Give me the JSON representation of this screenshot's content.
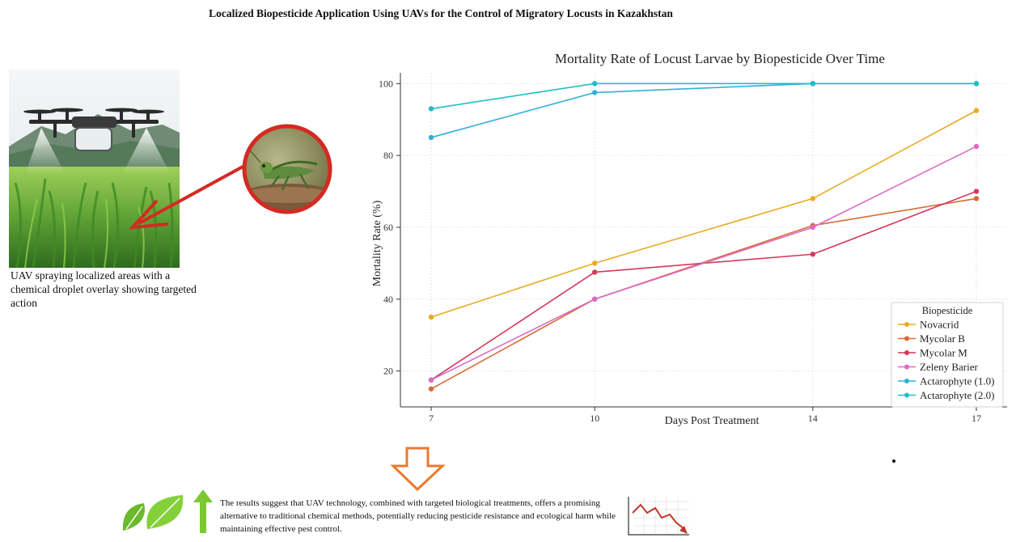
{
  "page": {
    "title": "Localized Biopesticide Application Using UAVs for the Control of Migratory Locusts in Kazakhstan",
    "photo_caption": "UAV spraying localized areas with a chemical droplet overlay showing targeted action",
    "conclusion": "The results suggest that UAV technology, combined with targeted biological treatments, offers a promising alternative to traditional chemical methods, potentially reducing pesticide resistance and ecological harm while maintaining effective pest control."
  },
  "icons": {
    "drone_photo": "drone-field-photo",
    "pointer_arrow": "red-arrow-icon",
    "locust_photo": "locust-icon",
    "down_arrow": "down-arrow-icon",
    "leaves": "leaf-icon",
    "up_arrow": "up-arrow-icon",
    "decline_chart": "decline-chart-icon"
  },
  "colors": {
    "pointer_red": "#d42a22",
    "down_arrow_orange": "#e87a2e",
    "leaf_green": "#7cc832",
    "decline_red": "#c0392b"
  },
  "chart_data": {
    "type": "line",
    "title": "Mortality Rate of Locust Larvae by Biopesticide Over Time",
    "xlabel": "Days Post Treatment",
    "ylabel": "Mortality Rate (%)",
    "x": [
      7,
      10,
      14,
      17
    ],
    "xlim": [
      7,
      17
    ],
    "ylim": [
      10,
      103
    ],
    "yticks": [
      20,
      40,
      60,
      80,
      100
    ],
    "grid": true,
    "legend_title": "Biopesticide",
    "legend_position": "bottom-right",
    "series": [
      {
        "name": "Novacrid",
        "color": "#e8ab23",
        "values": [
          35,
          50,
          68,
          92.5
        ]
      },
      {
        "name": "Mycolar B",
        "color": "#d96b35",
        "values": [
          15,
          40,
          60.5,
          68
        ]
      },
      {
        "name": "Mycolar M",
        "color": "#d23a5c",
        "values": [
          17.5,
          47.5,
          52.5,
          70
        ]
      },
      {
        "name": "Zeleny Barier",
        "color": "#dc6ac6",
        "values": [
          17.5,
          40,
          60,
          82.5
        ]
      },
      {
        "name": "Actarophyte (1.0)",
        "color": "#32b0d8",
        "values": [
          85,
          97.5,
          100,
          100
        ]
      },
      {
        "name": "Actarophyte (2.0)",
        "color": "#1fbec8",
        "values": [
          93,
          100,
          100,
          100
        ]
      }
    ]
  }
}
